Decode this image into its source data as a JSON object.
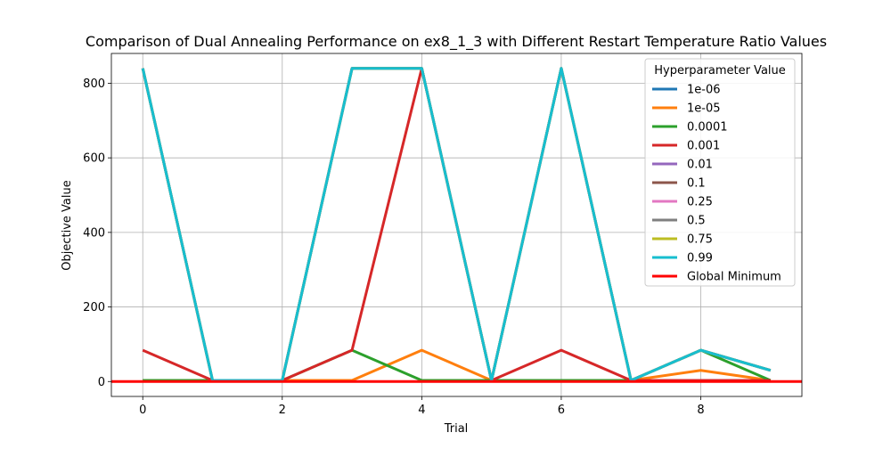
{
  "chart_data": {
    "type": "line",
    "title": "Comparison of Dual Annealing Performance on ex8_1_3 with Different Restart Temperature Ratio Values",
    "xlabel": "Trial",
    "ylabel": "Objective Value",
    "xlim": [
      -0.45,
      9.45
    ],
    "ylim": [
      -40,
      880
    ],
    "xticks": [
      0,
      2,
      4,
      6,
      8
    ],
    "yticks": [
      0,
      200,
      400,
      600,
      800
    ],
    "grid": true,
    "legend_title": "Hyperparameter Value",
    "legend_position": "upper right",
    "x": [
      0,
      1,
      2,
      3,
      4,
      5,
      6,
      7,
      8,
      9
    ],
    "series": [
      {
        "name": "1e-06",
        "color": "#1f77b4",
        "values": [
          840,
          3,
          3,
          840,
          840,
          3,
          840,
          3,
          84,
          30
        ]
      },
      {
        "name": "1e-05",
        "color": "#ff7f0e",
        "values": [
          3,
          3,
          3,
          3,
          84,
          3,
          3,
          3,
          30,
          3
        ]
      },
      {
        "name": "0.0001",
        "color": "#2ca02c",
        "values": [
          3,
          3,
          3,
          84,
          3,
          3,
          3,
          3,
          84,
          3
        ]
      },
      {
        "name": "0.001",
        "color": "#d62728",
        "values": [
          84,
          3,
          3,
          84,
          840,
          3,
          84,
          3,
          3,
          3
        ]
      },
      {
        "name": "0.01",
        "color": "#9467bd",
        "values": [
          840,
          3,
          3,
          840,
          840,
          3,
          840,
          3,
          84,
          30
        ]
      },
      {
        "name": "0.1",
        "color": "#8c564b",
        "values": [
          840,
          3,
          3,
          840,
          840,
          3,
          840,
          3,
          84,
          30
        ]
      },
      {
        "name": "0.25",
        "color": "#e377c2",
        "values": [
          840,
          3,
          3,
          840,
          840,
          3,
          840,
          3,
          84,
          30
        ]
      },
      {
        "name": "0.5",
        "color": "#7f7f7f",
        "values": [
          840,
          3,
          3,
          840,
          840,
          3,
          840,
          3,
          84,
          30
        ]
      },
      {
        "name": "0.75",
        "color": "#bcbd22",
        "values": [
          840,
          3,
          3,
          840,
          840,
          3,
          840,
          3,
          84,
          30
        ]
      },
      {
        "name": "0.99",
        "color": "#17becf",
        "values": [
          840,
          3,
          3,
          840,
          840,
          3,
          840,
          3,
          84,
          30
        ]
      }
    ],
    "global_minimum": {
      "name": "Global Minimum",
      "color": "#ff0000",
      "value": 0
    }
  }
}
